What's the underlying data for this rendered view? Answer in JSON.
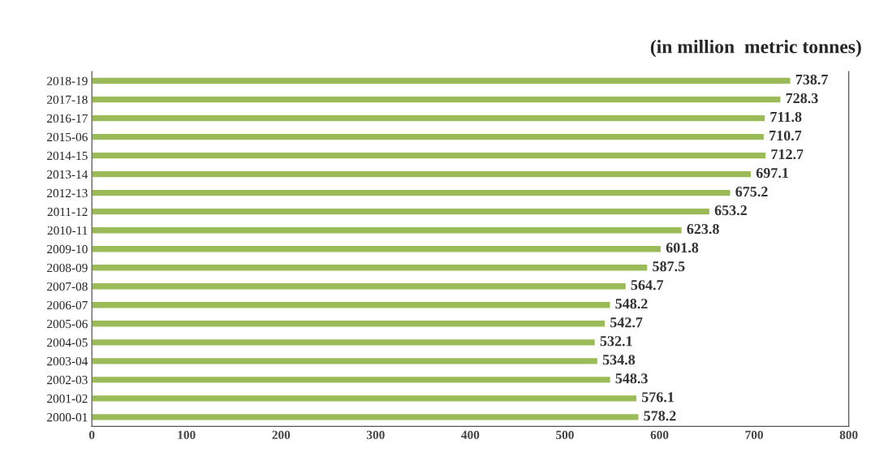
{
  "chart_data": {
    "type": "bar",
    "orientation": "horizontal",
    "title": "(in million  metric tonnes)",
    "categories": [
      "2018-19",
      "2017-18",
      "2016-17",
      "2015-06",
      "2014-15",
      "2013-14",
      "2012-13",
      "2011-12",
      "2010-11",
      "2009-10",
      "2008-09",
      "2007-08",
      "2006-07",
      "2005-06",
      "2004-05",
      "2003-04",
      "2002-03",
      "2001-02",
      "2000-01"
    ],
    "values": [
      738.7,
      728.3,
      711.8,
      710.7,
      712.7,
      697.1,
      675.2,
      653.2,
      623.8,
      601.8,
      587.5,
      564.7,
      548.2,
      542.7,
      532.1,
      534.8,
      548.3,
      576.1,
      578.2
    ],
    "color": "#9bbb59",
    "xlim": [
      0,
      800
    ],
    "xticks": [
      0,
      100,
      200,
      300,
      400,
      500,
      600,
      700,
      800
    ],
    "grid": false,
    "data_labels": true
  }
}
